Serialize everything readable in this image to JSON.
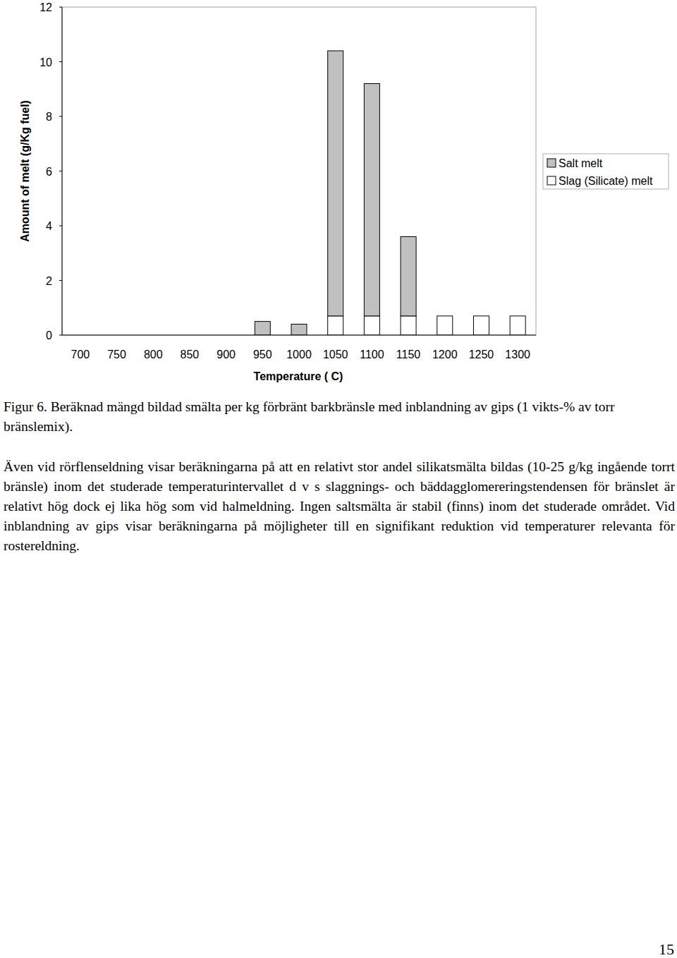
{
  "chart_data": {
    "type": "bar",
    "stacked": true,
    "x_label": "Temperature ( C)",
    "y_label": "Amount of melt (g/Kg fuel)",
    "categories": [
      700,
      750,
      800,
      850,
      900,
      950,
      1000,
      1050,
      1100,
      1150,
      1200,
      1250,
      1300
    ],
    "series": [
      {
        "name": "Salt melt",
        "color": "#c0c0c0",
        "values": [
          0,
          0,
          0,
          0,
          0,
          0.5,
          0.4,
          9.7,
          8.5,
          2.9,
          0,
          0,
          0
        ]
      },
      {
        "name": "Slag (Silicate) melt",
        "color": "#ffffff",
        "values": [
          0,
          0,
          0,
          0,
          0,
          0,
          0,
          0.7,
          0.7,
          0.7,
          0.7,
          0.7,
          0.7
        ]
      }
    ],
    "ylim": [
      0,
      12
    ],
    "yticks": [
      0,
      2,
      4,
      6,
      8,
      10,
      12
    ],
    "grid": false,
    "legend": "right"
  },
  "caption": "Figur 6. Beräknad mängd bildad smälta per kg förbränt barkbränsle med inblandning av gips (1 vikts-% av torr bränslemix).",
  "body": "Även vid rörflenseldning visar beräkningarna på att en relativt stor andel silikatsmälta bildas (10-25 g/kg ingående torrt bränsle) inom det studerade temperaturintervallet d v s slaggnings- och bäddagglomereringstendensen för bränslet är relativt hög dock ej lika hög som vid halmeldning. Ingen saltsmälta är stabil (finns) inom det studerade området. Vid inblandning av gips visar beräkningarna på möjligheter till en signifikant reduktion vid temperaturer relevanta för rostereldning.",
  "page_number": "15"
}
